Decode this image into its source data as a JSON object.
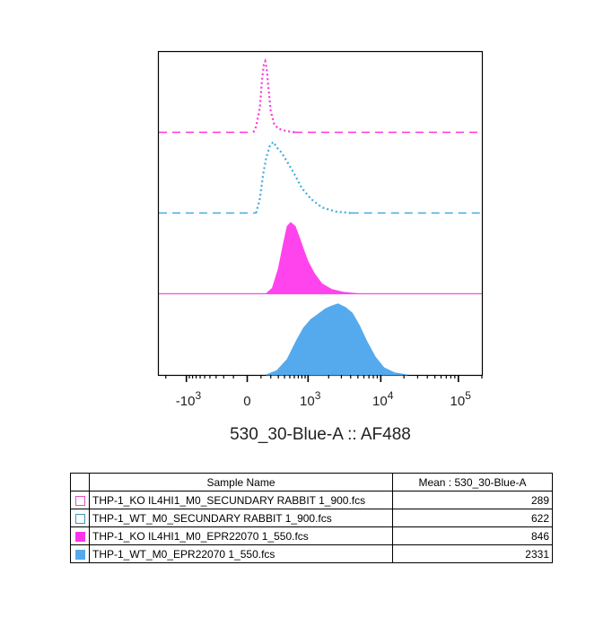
{
  "chart_data": {
    "type": "area",
    "xlabel": "530_30-Blue-A :: AF488",
    "x_scale": "biexponential",
    "x_ticks": [
      {
        "value": -1000,
        "label": "-10",
        "exp": "3"
      },
      {
        "value": 0,
        "label": "0",
        "exp": ""
      },
      {
        "value": 1000,
        "label": "10",
        "exp": "3"
      },
      {
        "value": 10000,
        "label": "10",
        "exp": "4"
      },
      {
        "value": 100000,
        "label": "10",
        "exp": "5"
      }
    ],
    "xlim": [
      -2500,
      200000
    ],
    "layout": "offset histograms (ridgeline), no y-axis labels",
    "series": [
      {
        "name": "THP-1_KO IL4HI1_M0_SECUNDARY RABBIT 1_900.fcs",
        "color": "#ff33dd",
        "style": "dotted-outline",
        "mean": 289,
        "points": [
          [
            40,
            0
          ],
          [
            60,
            0.08
          ],
          [
            90,
            0.35
          ],
          [
            110,
            0.75
          ],
          [
            125,
            0.95
          ],
          [
            140,
            1.0
          ],
          [
            155,
            0.9
          ],
          [
            175,
            0.6
          ],
          [
            200,
            0.3
          ],
          [
            240,
            0.12
          ],
          [
            300,
            0.05
          ],
          [
            420,
            0.02
          ],
          [
            600,
            0
          ]
        ]
      },
      {
        "name": "THP-1_WT_M0_SECUNDARY RABBIT 1_900.fcs",
        "color": "#44aadd",
        "style": "dotted-outline",
        "mean": 622,
        "points": [
          [
            60,
            0
          ],
          [
            90,
            0.2
          ],
          [
            120,
            0.55
          ],
          [
            150,
            0.78
          ],
          [
            190,
            0.95
          ],
          [
            230,
            1.0
          ],
          [
            280,
            0.92
          ],
          [
            350,
            0.85
          ],
          [
            450,
            0.72
          ],
          [
            600,
            0.55
          ],
          [
            800,
            0.35
          ],
          [
            1100,
            0.2
          ],
          [
            1600,
            0.08
          ],
          [
            2500,
            0.02
          ],
          [
            4000,
            0
          ]
        ]
      },
      {
        "name": "THP-1_KO IL4HI1_M0_EPR22070 1_550.fcs",
        "color": "#ff44ee",
        "style": "filled",
        "mean": 846,
        "points": [
          [
            150,
            0
          ],
          [
            220,
            0.08
          ],
          [
            300,
            0.35
          ],
          [
            380,
            0.7
          ],
          [
            450,
            0.95
          ],
          [
            520,
            1.0
          ],
          [
            620,
            0.95
          ],
          [
            720,
            0.8
          ],
          [
            850,
            0.62
          ],
          [
            1000,
            0.45
          ],
          [
            1250,
            0.28
          ],
          [
            1600,
            0.14
          ],
          [
            2200,
            0.06
          ],
          [
            3200,
            0.02
          ],
          [
            5000,
            0
          ]
        ]
      },
      {
        "name": "THP-1_WT_M0_EPR22070 1_550.fcs",
        "color": "#55aaee",
        "style": "filled",
        "mean": 2331,
        "points": [
          [
            150,
            0
          ],
          [
            280,
            0.06
          ],
          [
            450,
            0.22
          ],
          [
            650,
            0.48
          ],
          [
            850,
            0.66
          ],
          [
            1100,
            0.78
          ],
          [
            1400,
            0.85
          ],
          [
            1800,
            0.93
          ],
          [
            2200,
            0.97
          ],
          [
            2700,
            1.0
          ],
          [
            3400,
            0.95
          ],
          [
            4200,
            0.87
          ],
          [
            5200,
            0.7
          ],
          [
            6500,
            0.48
          ],
          [
            8500,
            0.25
          ],
          [
            11000,
            0.1
          ],
          [
            15000,
            0.03
          ],
          [
            22000,
            0
          ]
        ]
      }
    ]
  },
  "legend": {
    "header_name": "Sample Name",
    "header_value": "Mean : 530_30-Blue-A",
    "rows": [
      {
        "name": "THP-1_KO IL4HI1_M0_SECUNDARY RABBIT 1_900.fcs",
        "value": "289",
        "swatch": "outline",
        "color": "#e050c8"
      },
      {
        "name": "THP-1_WT_M0_SECUNDARY RABBIT 1_900.fcs",
        "value": "622",
        "swatch": "outline",
        "color": "#3a9ac0"
      },
      {
        "name": "THP-1_KO IL4HI1_M0_EPR22070 1_550.fcs",
        "value": "846",
        "swatch": "filled",
        "color": "#ff33ee"
      },
      {
        "name": "THP-1_WT_M0_EPR22070 1_550.fcs",
        "value": "2331",
        "swatch": "filled",
        "color": "#55aaee"
      }
    ]
  }
}
